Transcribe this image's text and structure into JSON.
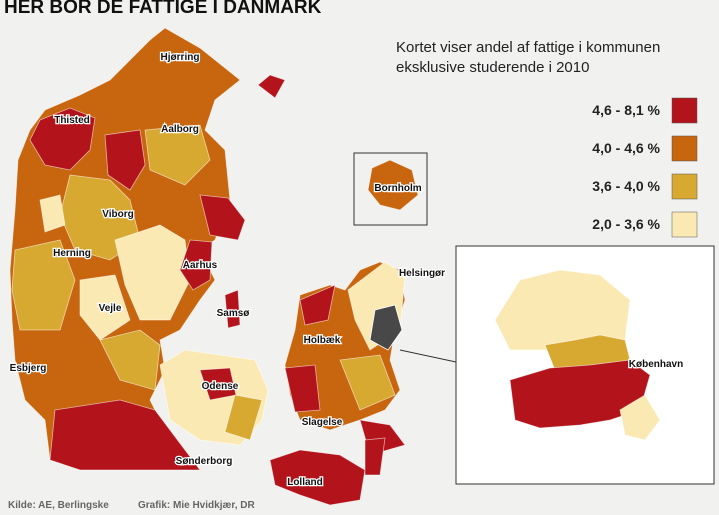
{
  "header": {
    "title": "HER BOR DE FATTIGE I DANMARK"
  },
  "subtitle": [
    "Kortet viser andel af fattige i kommunen",
    "eksklusive studerende i 2010"
  ],
  "legend": [
    {
      "label": "4,6 - 8,1 %",
      "color": "#b3141c"
    },
    {
      "label": "4,0 - 4,6 %",
      "color": "#c8650f"
    },
    {
      "label": "3,6 - 4,0 %",
      "color": "#d8a930"
    },
    {
      "label": "2,0 - 3,6 %",
      "color": "#fbe9b4"
    }
  ],
  "places": [
    "Hjørring",
    "Thisted",
    "Aalborg",
    "Viborg",
    "Herning",
    "Aarhus",
    "Vejle",
    "Samsø",
    "Esbjerg",
    "Odense",
    "Holbæk",
    "Helsingør",
    "Slagelse",
    "Sønderborg",
    "Lolland",
    "Bornholm",
    "København"
  ],
  "footer": {
    "source": "Kilde: AE, Berlingske",
    "credit": "Grafik: Mie Hvidkjær, DR"
  }
}
